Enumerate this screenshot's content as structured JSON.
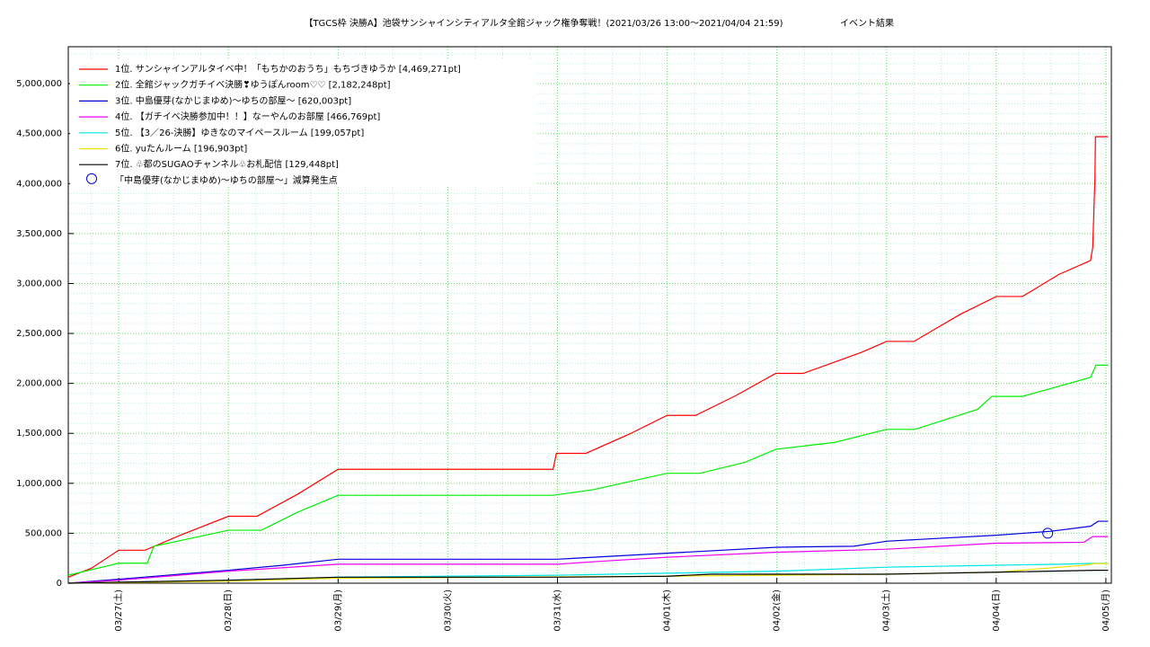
{
  "chart_data": {
    "type": "line",
    "title": "【TGCS枠 決勝A】池袋サンシャインシティアルタ全館ジャック権争奪戦！(2021/03/26 13:00〜2021/04/04 21:59)",
    "subtitle": "イベント結果",
    "xlim": [
      0.54,
      10.05
    ],
    "ylim": [
      0,
      5370000
    ],
    "xticks": [
      {
        "value": 1,
        "label": "03/27(土)"
      },
      {
        "value": 2,
        "label": "03/28(日)"
      },
      {
        "value": 3,
        "label": "03/29(月)"
      },
      {
        "value": 4,
        "label": "03/30(火)"
      },
      {
        "value": 5,
        "label": "03/31(水)"
      },
      {
        "value": 6,
        "label": "04/01(木)"
      },
      {
        "value": 7,
        "label": "04/02(金)"
      },
      {
        "value": 8,
        "label": "04/03(土)"
      },
      {
        "value": 9,
        "label": "04/04(日)"
      },
      {
        "value": 10,
        "label": "04/05(月)"
      }
    ],
    "yticks": [
      0,
      {
        "value": 500000,
        "label": "500,000"
      },
      {
        "value": 1000000,
        "label": "1,000,000"
      },
      {
        "value": 1500000,
        "label": "1,500,000"
      },
      {
        "value": 2000000,
        "label": "2,000,000"
      },
      {
        "value": 2500000,
        "label": "2,500,000"
      },
      {
        "value": 3000000,
        "label": "3,000,000"
      },
      {
        "value": 3500000,
        "label": "3,500,000"
      },
      {
        "value": 4000000,
        "label": "4,000,000"
      },
      {
        "value": 4500000,
        "label": "4,500,000"
      },
      {
        "value": 5000000,
        "label": "5,000,000"
      }
    ],
    "minor_xticks": [
      0.75,
      1.25,
      1.5,
      1.75,
      2.25,
      2.5,
      2.75,
      3.25,
      3.5,
      3.75,
      4.25,
      4.5,
      4.75,
      5.25,
      5.5,
      5.75,
      6.25,
      6.5,
      6.75,
      7.25,
      7.5,
      7.75,
      8.25,
      8.5,
      8.75,
      9.25,
      9.5,
      9.75
    ],
    "minor_yticks": [
      100000,
      200000,
      300000,
      400000,
      600000,
      700000,
      800000,
      900000,
      1100000,
      1200000,
      1300000,
      1400000,
      1600000,
      1700000,
      1800000,
      1900000,
      2100000,
      2200000,
      2300000,
      2400000,
      2600000,
      2700000,
      2800000,
      2900000,
      3100000,
      3200000,
      3300000,
      3400000,
      3600000,
      3700000,
      3800000,
      3900000,
      4100000,
      4200000,
      4300000,
      4400000,
      4600000,
      4700000,
      4800000,
      4900000,
      5100000,
      5200000,
      5300000
    ],
    "grid": true,
    "legend": "upper left",
    "series": [
      {
        "name": "1位. サンシャインアルタイベ中！「もちかのおうち」もちづきゆうか [4,469,271pt]",
        "color": "#ff0000",
        "x": [
          0.54,
          0.75,
          1.0,
          1.24,
          1.56,
          2.0,
          2.26,
          2.63,
          3.0,
          4.96,
          4.99,
          5.26,
          5.65,
          6.0,
          6.26,
          6.63,
          6.99,
          7.24,
          7.77,
          8.0,
          8.25,
          8.67,
          9.0,
          9.24,
          9.57,
          9.86,
          9.88,
          9.9,
          9.905,
          10.02
        ],
        "values": [
          60000,
          150000,
          330000,
          330000,
          480000,
          670000,
          670000,
          890000,
          1140000,
          1140000,
          1300000,
          1300000,
          1490000,
          1680000,
          1680000,
          1880000,
          2100000,
          2100000,
          2310000,
          2420000,
          2420000,
          2690000,
          2870000,
          2870000,
          3090000,
          3230000,
          3360000,
          4040000,
          4469271,
          4469271
        ]
      },
      {
        "name": "2位. 全館ジャックガチイベ決勝❣ゆうぽんroom♡♡ [2,182,248pt]",
        "color": "#00ee00",
        "x": [
          0.54,
          1.0,
          1.26,
          1.32,
          2.0,
          2.3,
          2.63,
          3.0,
          4.96,
          5.32,
          6.0,
          6.3,
          6.71,
          6.99,
          7.53,
          8.0,
          8.26,
          8.83,
          8.96,
          9.24,
          9.86,
          9.91,
          10.02
        ],
        "values": [
          80000,
          200000,
          200000,
          370000,
          530000,
          530000,
          710000,
          880000,
          880000,
          935000,
          1100000,
          1100000,
          1210000,
          1340000,
          1410000,
          1540000,
          1540000,
          1740000,
          1870000,
          1870000,
          2060000,
          2182248,
          2182248
        ]
      },
      {
        "name": "3位. 中島優芽(なかじまゆめ)〜ゆちの部屋〜 [620,003pt]",
        "color": "#0000dd",
        "x": [
          0.54,
          1.0,
          2.0,
          2.5,
          3.0,
          5.0,
          6.0,
          7.0,
          7.7,
          8.0,
          9.0,
          9.5,
          9.86,
          9.93,
          10.02
        ],
        "values": [
          0,
          40000,
          130000,
          180000,
          240000,
          240000,
          300000,
          360000,
          370000,
          420000,
          480000,
          520000,
          570000,
          620003,
          620003
        ]
      },
      {
        "name": "4位. 【ガチイベ決勝参加中！！】なーやんのお部屋 [466,769pt]",
        "color": "#ee00ee",
        "x": [
          0.54,
          1.0,
          2.0,
          3.0,
          5.0,
          5.4,
          6.0,
          7.0,
          8.0,
          8.5,
          9.0,
          9.8,
          9.88,
          10.02
        ],
        "values": [
          0,
          30000,
          120000,
          190000,
          190000,
          220000,
          260000,
          310000,
          340000,
          370000,
          400000,
          410000,
          466769,
          466769
        ]
      },
      {
        "name": "5位. 【3／26-決勝】ゆきなのマイペースルーム [199,057pt]",
        "color": "#00e5e5",
        "x": [
          0.54,
          2.0,
          3.0,
          5.0,
          6.0,
          7.0,
          8.0,
          9.0,
          9.6,
          9.9,
          10.02
        ],
        "values": [
          0,
          30000,
          60000,
          80000,
          100000,
          120000,
          160000,
          180000,
          190000,
          199057,
          199057
        ]
      },
      {
        "name": "6位. yuたんルーム [196,903pt]",
        "color": "#f0e000",
        "x": [
          0.54,
          2.0,
          3.0,
          6.0,
          8.0,
          9.0,
          9.8,
          9.9,
          10.02
        ],
        "values": [
          0,
          20000,
          50000,
          70000,
          90000,
          110000,
          180000,
          196903,
          196903
        ]
      },
      {
        "name": "7位. ♧都のSUGAOチャンネル♧お札配信 [129,448pt]",
        "color": "#000000",
        "x": [
          0.54,
          1.0,
          2.0,
          3.0,
          5.0,
          6.0,
          6.4,
          8.0,
          9.0,
          9.9,
          10.02
        ],
        "values": [
          0,
          10000,
          30000,
          60000,
          60000,
          70000,
          90000,
          90000,
          110000,
          129448,
          129448
        ]
      }
    ],
    "markers": {
      "name": "「中島優芽(なかじまゆめ)〜ゆちの部屋〜」減算発生点",
      "color": "#0000dd",
      "x": [
        9.47
      ],
      "values": [
        500000
      ]
    }
  }
}
